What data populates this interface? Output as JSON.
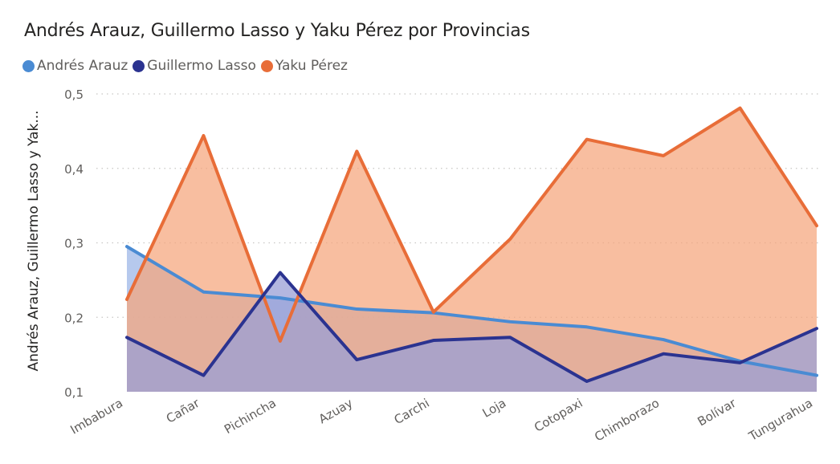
{
  "chart_data": {
    "type": "area",
    "title": "Andrés Arauz, Guillermo Lasso y Yaku Pérez por Provincias",
    "ylabel": "Andrés Arauz, Guillermo Lasso y Yak...",
    "xlabel": "",
    "categories": [
      "Imbabura",
      "Cañar",
      "Pichincha",
      "Azuay",
      "Carchi",
      "Loja",
      "Cotopaxi",
      "Chimborazo",
      "Bolívar",
      "Tungurahua"
    ],
    "ylim": [
      0.1,
      0.5
    ],
    "yticks": [
      "0,1",
      "0,2",
      "0,3",
      "0,4",
      "0,5"
    ],
    "grid": true,
    "legend_position": "top-left",
    "series": [
      {
        "name": "Andrés Arauz",
        "color": "#4a8bd3",
        "fill": "#a9bfea",
        "values": [
          0.295,
          0.234,
          0.226,
          0.211,
          0.206,
          0.194,
          0.187,
          0.17,
          0.141,
          0.122
        ]
      },
      {
        "name": "Guillermo Lasso",
        "color": "#2b3390",
        "fill": "#9a9fd6",
        "values": [
          0.173,
          0.122,
          0.26,
          0.143,
          0.169,
          0.173,
          0.114,
          0.151,
          0.139,
          0.185
        ]
      },
      {
        "name": "Yaku Pérez",
        "color": "#e86d38",
        "fill": "#f5a57c",
        "values": [
          0.224,
          0.444,
          0.168,
          0.423,
          0.207,
          0.305,
          0.439,
          0.417,
          0.481,
          0.323
        ]
      }
    ]
  }
}
